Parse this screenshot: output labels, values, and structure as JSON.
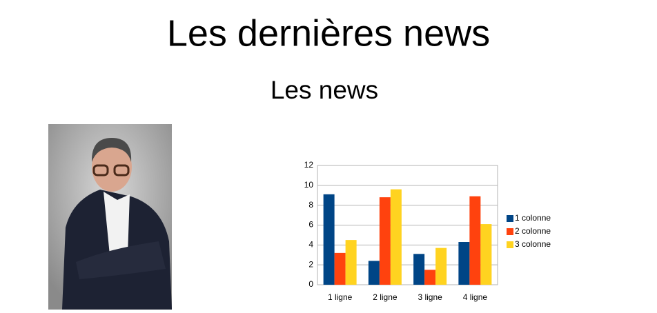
{
  "header": {
    "title": "Les dernières news",
    "subtitle": "Les news"
  },
  "chart_data": {
    "type": "bar",
    "categories": [
      "1 ligne",
      "2 ligne",
      "3 ligne",
      "4 ligne"
    ],
    "series": [
      {
        "name": "1 colonne",
        "color": "#004586",
        "values": [
          9.1,
          2.4,
          3.1,
          4.3
        ]
      },
      {
        "name": "2 colonne",
        "color": "#ff420e",
        "values": [
          3.2,
          8.8,
          1.5,
          8.9
        ]
      },
      {
        "name": "3 colonne",
        "color": "#ffd320",
        "values": [
          4.5,
          9.6,
          3.7,
          6.1
        ]
      }
    ],
    "ylim": [
      0,
      12
    ],
    "yticks": [
      0,
      2,
      4,
      6,
      8,
      10,
      12
    ],
    "grid": true,
    "legend": "right"
  }
}
